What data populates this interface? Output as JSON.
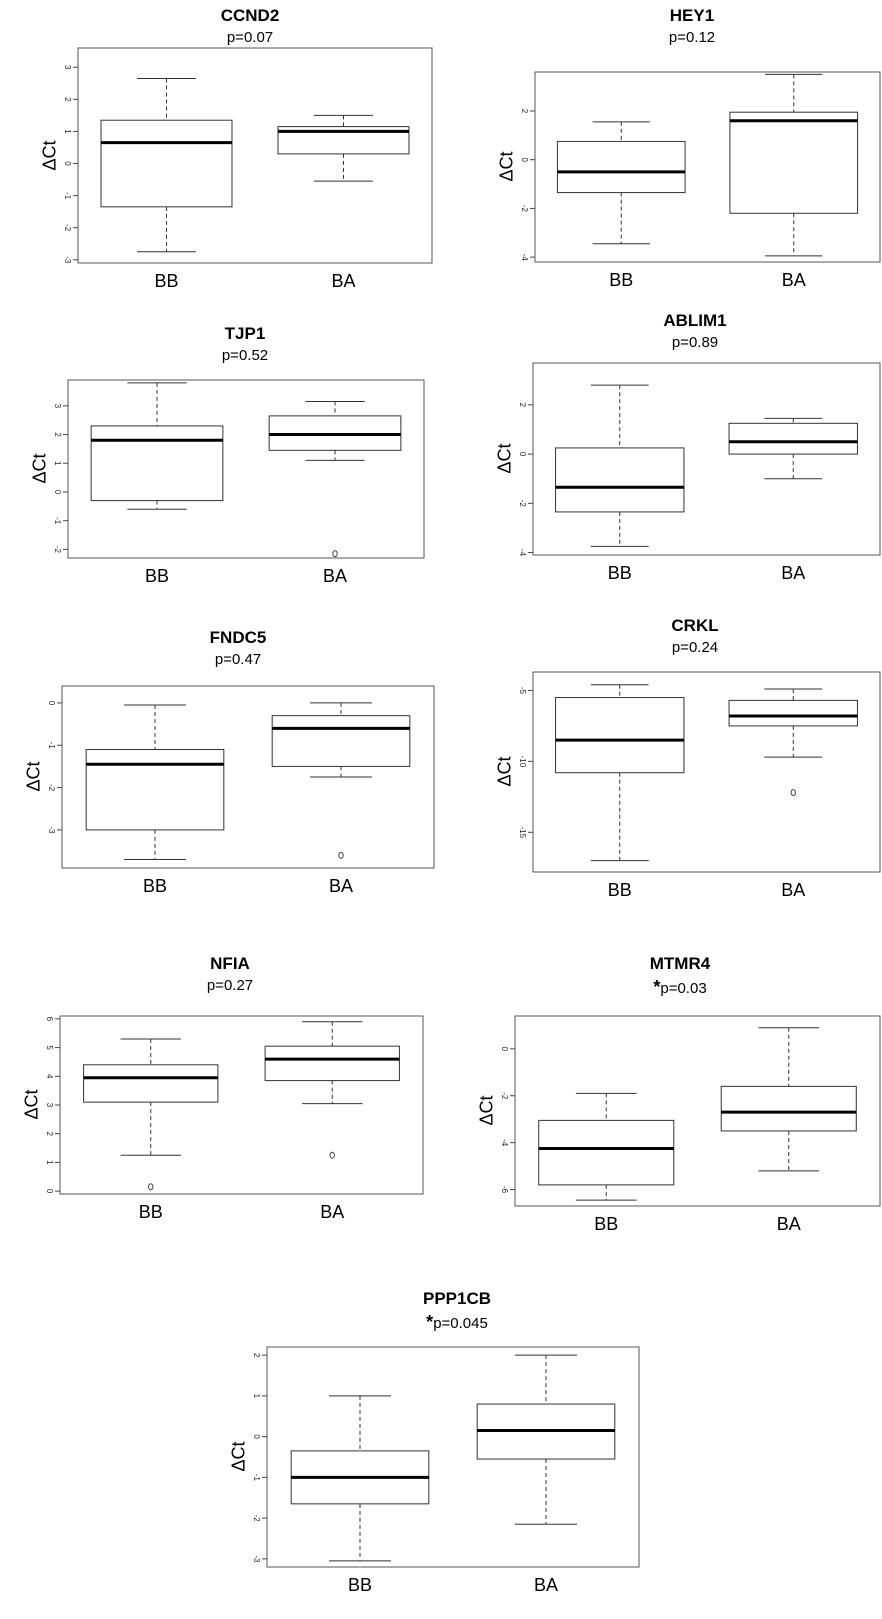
{
  "chart_data": [
    {
      "type": "box",
      "title": "CCND2",
      "p_value": "p=0.07",
      "significant_mark": "",
      "ylabel": "ΔCt",
      "categories": [
        "BB",
        "BA"
      ],
      "ylim": [
        -3.1,
        3.6
      ],
      "yticks": [
        -3,
        -2,
        -1,
        0,
        1,
        2,
        3
      ],
      "boxes": [
        {
          "group": "BB",
          "whisker_low": -2.75,
          "q1": -1.35,
          "median": 0.65,
          "q3": 1.35,
          "whisker_high": 2.65,
          "outliers": []
        },
        {
          "group": "BA",
          "whisker_low": -0.55,
          "q1": 0.3,
          "median": 1.0,
          "q3": 1.15,
          "whisker_high": 1.5,
          "outliers": []
        }
      ]
    },
    {
      "type": "box",
      "title": "HEY1",
      "p_value": "p=0.12",
      "significant_mark": "",
      "ylabel": "ΔCt",
      "categories": [
        "BB",
        "BA"
      ],
      "ylim": [
        -4.2,
        3.6
      ],
      "yticks": [
        -4,
        -2,
        0,
        2
      ],
      "boxes": [
        {
          "group": "BB",
          "whisker_low": -3.45,
          "q1": -1.35,
          "median": -0.5,
          "q3": 0.75,
          "whisker_high": 1.55,
          "outliers": []
        },
        {
          "group": "BA",
          "whisker_low": -3.95,
          "q1": -2.2,
          "median": 1.6,
          "q3": 1.95,
          "whisker_high": 3.5,
          "outliers": []
        }
      ]
    },
    {
      "type": "box",
      "title": "TJP1",
      "p_value": "p=0.52",
      "significant_mark": "",
      "ylabel": "ΔCt",
      "categories": [
        "BB",
        "BA"
      ],
      "ylim": [
        -2.3,
        3.9
      ],
      "yticks": [
        -2,
        -1,
        0,
        1,
        2,
        3
      ],
      "boxes": [
        {
          "group": "BB",
          "whisker_low": -0.6,
          "q1": -0.3,
          "median": 1.8,
          "q3": 2.3,
          "whisker_high": 3.8,
          "outliers": []
        },
        {
          "group": "BA",
          "whisker_low": 1.1,
          "q1": 1.45,
          "median": 2.0,
          "q3": 2.65,
          "whisker_high": 3.15,
          "outliers": [
            -2.15
          ]
        }
      ]
    },
    {
      "type": "box",
      "title": "ABLIM1",
      "p_value": "p=0.89",
      "significant_mark": "",
      "ylabel": "ΔCt",
      "categories": [
        "BB",
        "BA"
      ],
      "ylim": [
        -4.1,
        3.7
      ],
      "yticks": [
        -4,
        -2,
        0,
        2
      ],
      "boxes": [
        {
          "group": "BB",
          "whisker_low": -3.75,
          "q1": -2.35,
          "median": -1.35,
          "q3": 0.25,
          "whisker_high": 2.8,
          "outliers": []
        },
        {
          "group": "BA",
          "whisker_low": -1.0,
          "q1": 0.0,
          "median": 0.5,
          "q3": 1.25,
          "whisker_high": 1.45,
          "outliers": []
        }
      ]
    },
    {
      "type": "box",
      "title": "FNDC5",
      "p_value": "p=0.47",
      "significant_mark": "",
      "ylabel": "ΔCt",
      "categories": [
        "BB",
        "BA"
      ],
      "ylim": [
        -3.9,
        0.4
      ],
      "yticks": [
        -3,
        -2,
        -1,
        0
      ],
      "boxes": [
        {
          "group": "BB",
          "whisker_low": -3.7,
          "q1": -3.0,
          "median": -1.45,
          "q3": -1.1,
          "whisker_high": -0.05,
          "outliers": []
        },
        {
          "group": "BA",
          "whisker_low": -1.75,
          "q1": -1.5,
          "median": -0.6,
          "q3": -0.3,
          "whisker_high": 0.0,
          "outliers": [
            -3.6
          ]
        }
      ]
    },
    {
      "type": "box",
      "title": "CRKL",
      "p_value": "p=0.24",
      "significant_mark": "",
      "ylabel": "ΔCt",
      "categories": [
        "BB",
        "BA"
      ],
      "ylim": [
        -17.8,
        -3.7
      ],
      "yticks": [
        -15,
        -10,
        -5
      ],
      "boxes": [
        {
          "group": "BB",
          "whisker_low": -17.0,
          "q1": -10.8,
          "median": -8.5,
          "q3": -5.5,
          "whisker_high": -4.6,
          "outliers": []
        },
        {
          "group": "BA",
          "whisker_low": -9.7,
          "q1": -7.5,
          "median": -6.8,
          "q3": -5.7,
          "whisker_high": -4.9,
          "outliers": [
            -12.2
          ]
        }
      ]
    },
    {
      "type": "box",
      "title": "NFIA",
      "p_value": "p=0.27",
      "significant_mark": "",
      "ylabel": "ΔCt",
      "categories": [
        "BB",
        "BA"
      ],
      "ylim": [
        -0.1,
        6.1
      ],
      "yticks": [
        0,
        1,
        2,
        3,
        4,
        5,
        6
      ],
      "boxes": [
        {
          "group": "BB",
          "whisker_low": 1.25,
          "q1": 3.1,
          "median": 3.95,
          "q3": 4.4,
          "whisker_high": 5.3,
          "outliers": [
            0.15
          ]
        },
        {
          "group": "BA",
          "whisker_low": 3.05,
          "q1": 3.85,
          "median": 4.6,
          "q3": 5.05,
          "whisker_high": 5.9,
          "outliers": [
            1.25
          ]
        }
      ]
    },
    {
      "type": "box",
      "title": "MTMR4",
      "p_value": "p=0.03",
      "significant_mark": "*",
      "ylabel": "ΔCt",
      "categories": [
        "BB",
        "BA"
      ],
      "ylim": [
        -6.7,
        1.4
      ],
      "yticks": [
        -6,
        -4,
        -2,
        0
      ],
      "boxes": [
        {
          "group": "BB",
          "whisker_low": -6.45,
          "q1": -5.8,
          "median": -4.25,
          "q3": -3.05,
          "whisker_high": -1.9,
          "outliers": []
        },
        {
          "group": "BA",
          "whisker_low": -5.2,
          "q1": -3.5,
          "median": -2.7,
          "q3": -1.6,
          "whisker_high": 0.9,
          "outliers": []
        }
      ]
    },
    {
      "type": "box",
      "title": "PPP1CB",
      "p_value": "p=0.045",
      "significant_mark": "*",
      "ylabel": "ΔCt",
      "categories": [
        "BB",
        "BA"
      ],
      "ylim": [
        -3.2,
        2.2
      ],
      "yticks": [
        -3,
        -2,
        -1,
        0,
        1,
        2
      ],
      "boxes": [
        {
          "group": "BB",
          "whisker_low": -3.05,
          "q1": -1.65,
          "median": -1.0,
          "q3": -0.35,
          "whisker_high": 1.0,
          "outliers": []
        },
        {
          "group": "BA",
          "whisker_low": -2.15,
          "q1": -0.55,
          "median": 0.15,
          "q3": 0.8,
          "whisker_high": 2.0,
          "outliers": []
        }
      ]
    }
  ]
}
